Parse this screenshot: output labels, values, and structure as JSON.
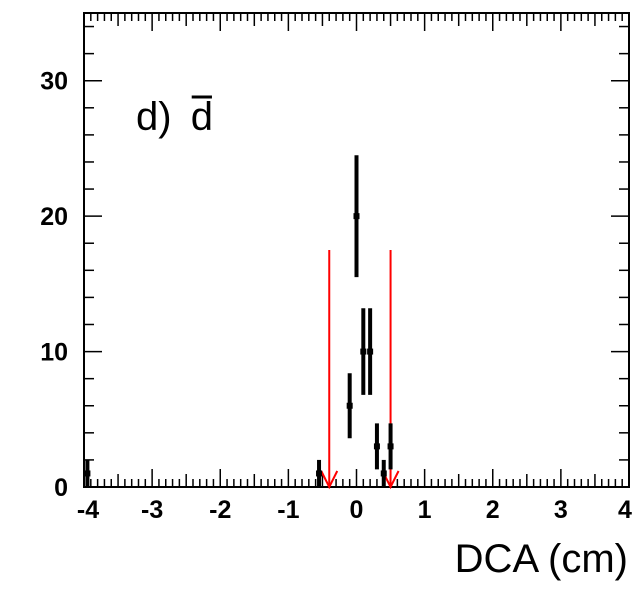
{
  "chart_data": {
    "type": "scatter",
    "title": "",
    "annotation": "d)",
    "annotation_symbol": "d",
    "annotation_symbol_overline": true,
    "xlabel": "DCA (cm)",
    "ylabel": "",
    "xlim": [
      -4,
      4
    ],
    "ylim": [
      0,
      35
    ],
    "x_ticks": [
      -4,
      -3,
      -2,
      -1,
      0,
      1,
      2,
      3,
      4
    ],
    "x_tick_labels": [
      "-4",
      "-3",
      "-2",
      "-1",
      "0",
      "1",
      "2",
      "3",
      "4"
    ],
    "y_ticks": [
      0,
      10,
      20,
      30
    ],
    "y_tick_labels": [
      "0",
      "10",
      "20",
      "30"
    ],
    "grid": false,
    "points": [
      {
        "x": -3.95,
        "y": 1,
        "yerr": 1
      },
      {
        "x": -0.55,
        "y": 1,
        "yerr": 1
      },
      {
        "x": -0.1,
        "y": 6,
        "yerr": 2.4
      },
      {
        "x": 0.0,
        "y": 20,
        "yerr": 4.5
      },
      {
        "x": 0.1,
        "y": 10,
        "yerr": 3.2
      },
      {
        "x": 0.2,
        "y": 10,
        "yerr": 3.2
      },
      {
        "x": 0.3,
        "y": 3,
        "yerr": 1.7
      },
      {
        "x": 0.4,
        "y": 1,
        "yerr": 1
      },
      {
        "x": 0.5,
        "y": 3,
        "yerr": 1.7
      }
    ],
    "cut_lines": [
      {
        "x": -0.4,
        "y_top": 17.5,
        "color": "#ff0000"
      },
      {
        "x": 0.5,
        "y_top": 17.5,
        "color": "#ff0000"
      }
    ],
    "marker_color": "#000000",
    "cut_color": "#ff0000"
  }
}
